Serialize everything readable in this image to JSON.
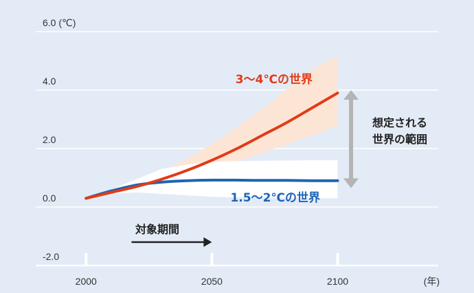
{
  "chart_data": {
    "type": "line",
    "title": "",
    "xlabel": "",
    "ylabel": "",
    "x_ticks": [
      "2000",
      "2050",
      "2100"
    ],
    "x_unit": "(年)",
    "y_ticks": [
      "6.0 (℃)",
      "4.0",
      "2.0",
      "0.0",
      "-2.0"
    ],
    "xlim": [
      1980,
      2140
    ],
    "ylim": [
      -2.0,
      6.0
    ],
    "grid": true,
    "series": [
      {
        "name": "3～4℃の世界",
        "color": "#e03c17",
        "band_color": "#fde5d6",
        "x": [
          2000,
          2010,
          2020,
          2030,
          2040,
          2050,
          2060,
          2070,
          2080,
          2090,
          2100
        ],
        "y": [
          0.3,
          0.5,
          0.7,
          0.95,
          1.25,
          1.6,
          2.0,
          2.45,
          2.9,
          3.4,
          3.9
        ],
        "band_lower": [
          0.3,
          0.45,
          0.65,
          0.8,
          1.05,
          1.3,
          1.55,
          1.85,
          2.15,
          2.45,
          2.8
        ],
        "band_upper": [
          0.3,
          0.55,
          0.85,
          1.2,
          1.65,
          2.15,
          2.75,
          3.35,
          4.05,
          4.7,
          5.2
        ]
      },
      {
        "name": "1.5～2℃の世界",
        "color": "#1e64b4",
        "band_color": "#ffffff",
        "x": [
          2000,
          2010,
          2020,
          2030,
          2040,
          2050,
          2060,
          2070,
          2080,
          2090,
          2100
        ],
        "y": [
          0.3,
          0.55,
          0.75,
          0.85,
          0.9,
          0.92,
          0.92,
          0.91,
          0.91,
          0.9,
          0.9
        ],
        "band_lower": [
          0.3,
          0.45,
          0.5,
          0.45,
          0.4,
          0.35,
          0.33,
          0.32,
          0.31,
          0.3,
          0.3
        ],
        "band_upper": [
          0.3,
          0.6,
          0.95,
          1.3,
          1.45,
          1.55,
          1.57,
          1.58,
          1.59,
          1.6,
          1.6
        ]
      }
    ],
    "range_note": "想定される\n世界の範囲",
    "period_label": "対象期間",
    "period_arrow": [
      2020,
      2050
    ],
    "range_arrow": [
      0.65,
      4.0
    ]
  }
}
